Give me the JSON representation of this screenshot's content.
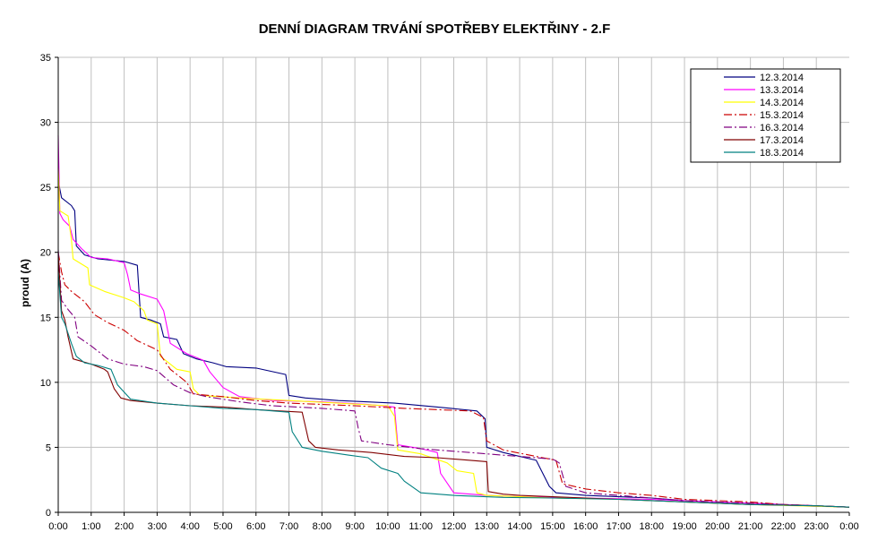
{
  "chart_data": {
    "type": "line",
    "title": "DENNÍ DIAGRAM TRVÁNÍ SPOTŘEBY ELEKTŘINY - 2.F",
    "ylabel": "proud (A)",
    "xlabel": "",
    "ylim": [
      0,
      35
    ],
    "yticks": [
      "0",
      "5",
      "10",
      "15",
      "20",
      "25",
      "30",
      "35"
    ],
    "xticks": [
      "0:00",
      "1:00",
      "2:00",
      "3:00",
      "4:00",
      "5:00",
      "6:00",
      "7:00",
      "8:00",
      "9:00",
      "10:00",
      "11:00",
      "12:00",
      "13:00",
      "14:00",
      "15:00",
      "16:00",
      "17:00",
      "18:00",
      "19:00",
      "20:00",
      "21:00",
      "22:00",
      "23:00",
      "0:00"
    ],
    "xlim_hours": [
      0,
      24
    ],
    "grid": "vertical and horizontal",
    "legend_position": "top-right",
    "series": [
      {
        "name": "12.3.2014",
        "color": "#000080",
        "dash": "solid",
        "points": [
          [
            0,
            25.5
          ],
          [
            0.1,
            24.2
          ],
          [
            0.4,
            23.6
          ],
          [
            0.5,
            23.2
          ],
          [
            0.55,
            20.5
          ],
          [
            0.8,
            19.8
          ],
          [
            1.2,
            19.5
          ],
          [
            2.0,
            19.3
          ],
          [
            2.4,
            19.0
          ],
          [
            2.5,
            15.0
          ],
          [
            2.8,
            14.8
          ],
          [
            3.1,
            14.5
          ],
          [
            3.2,
            13.5
          ],
          [
            3.6,
            13.3
          ],
          [
            3.8,
            12.2
          ],
          [
            4.2,
            11.8
          ],
          [
            4.7,
            11.5
          ],
          [
            5.1,
            11.2
          ],
          [
            6.0,
            11.1
          ],
          [
            6.9,
            10.6
          ],
          [
            7.0,
            9.0
          ],
          [
            7.5,
            8.8
          ],
          [
            8.5,
            8.6
          ],
          [
            10.2,
            8.4
          ],
          [
            11.5,
            8.1
          ],
          [
            12.7,
            7.8
          ],
          [
            12.95,
            7.2
          ],
          [
            13.0,
            5.0
          ],
          [
            13.5,
            4.6
          ],
          [
            14.5,
            4.0
          ],
          [
            14.9,
            2.0
          ],
          [
            15.1,
            1.5
          ],
          [
            16,
            1.3
          ],
          [
            17,
            1.2
          ],
          [
            18,
            1.1
          ],
          [
            19,
            0.9
          ],
          [
            20,
            0.8
          ],
          [
            21,
            0.7
          ],
          [
            22,
            0.6
          ],
          [
            23,
            0.5
          ],
          [
            24,
            0.4
          ]
        ]
      },
      {
        "name": "13.3.2014",
        "color": "#ff00ff",
        "dash": "solid",
        "points": [
          [
            0,
            29
          ],
          [
            0.05,
            23
          ],
          [
            0.15,
            22.5
          ],
          [
            0.35,
            22.0
          ],
          [
            0.45,
            21.0
          ],
          [
            0.7,
            20.3
          ],
          [
            1.0,
            19.6
          ],
          [
            1.5,
            19.5
          ],
          [
            2.0,
            19.2
          ],
          [
            2.1,
            18.3
          ],
          [
            2.2,
            17.1
          ],
          [
            2.5,
            16.8
          ],
          [
            3.0,
            16.4
          ],
          [
            3.2,
            15.5
          ],
          [
            3.4,
            13.0
          ],
          [
            3.9,
            12.2
          ],
          [
            4.4,
            11.7
          ],
          [
            4.6,
            10.8
          ],
          [
            5.0,
            9.6
          ],
          [
            5.5,
            8.9
          ],
          [
            6.5,
            8.6
          ],
          [
            8.0,
            8.5
          ],
          [
            9.4,
            8.3
          ],
          [
            10.2,
            8.1
          ],
          [
            10.3,
            5.2
          ],
          [
            11.0,
            4.9
          ],
          [
            11.5,
            4.6
          ],
          [
            11.6,
            3.0
          ],
          [
            12.0,
            1.5
          ],
          [
            13.0,
            1.3
          ],
          [
            14.0,
            1.2
          ],
          [
            16,
            1.1
          ],
          [
            18,
            1.0
          ],
          [
            20,
            0.8
          ],
          [
            22,
            0.6
          ],
          [
            24,
            0.4
          ]
        ]
      },
      {
        "name": "14.3.2014",
        "color": "#ffff00",
        "dash": "solid",
        "points": [
          [
            0,
            26.5
          ],
          [
            0.05,
            23.2
          ],
          [
            0.3,
            22.8
          ],
          [
            0.4,
            21.0
          ],
          [
            0.45,
            19.5
          ],
          [
            0.9,
            18.8
          ],
          [
            0.95,
            17.5
          ],
          [
            1.4,
            17.0
          ],
          [
            2.0,
            16.5
          ],
          [
            2.3,
            16.2
          ],
          [
            2.6,
            15.5
          ],
          [
            2.7,
            14.8
          ],
          [
            3.0,
            14.5
          ],
          [
            3.1,
            12.0
          ],
          [
            3.6,
            11.0
          ],
          [
            4.0,
            10.8
          ],
          [
            4.1,
            9.5
          ],
          [
            4.3,
            9.0
          ],
          [
            5.5,
            8.8
          ],
          [
            7.0,
            8.6
          ],
          [
            8.5,
            8.4
          ],
          [
            10.0,
            8.2
          ],
          [
            10.2,
            7.4
          ],
          [
            10.3,
            4.8
          ],
          [
            11.0,
            4.5
          ],
          [
            11.8,
            3.8
          ],
          [
            12.1,
            3.2
          ],
          [
            12.6,
            3.0
          ],
          [
            12.7,
            1.5
          ],
          [
            13.0,
            1.3
          ],
          [
            15,
            1.1
          ],
          [
            17,
            1.0
          ],
          [
            19,
            0.8
          ],
          [
            21,
            0.6
          ],
          [
            24,
            0.4
          ]
        ]
      },
      {
        "name": "15.3.2014",
        "color": "#cc0000",
        "dash": "dashdot",
        "points": [
          [
            0,
            20.0
          ],
          [
            0.1,
            18.5
          ],
          [
            0.2,
            17.5
          ],
          [
            0.4,
            17.0
          ],
          [
            0.6,
            16.6
          ],
          [
            0.8,
            16.2
          ],
          [
            1.1,
            15.2
          ],
          [
            1.5,
            14.6
          ],
          [
            2.0,
            14.0
          ],
          [
            2.4,
            13.2
          ],
          [
            3.0,
            12.5
          ],
          [
            3.4,
            11.0
          ],
          [
            3.9,
            10.0
          ],
          [
            4.1,
            9.1
          ],
          [
            5.0,
            8.9
          ],
          [
            6.0,
            8.6
          ],
          [
            7.0,
            8.4
          ],
          [
            8.0,
            8.3
          ],
          [
            9.0,
            8.2
          ],
          [
            10.5,
            8.0
          ],
          [
            12.5,
            7.8
          ],
          [
            12.9,
            7.3
          ],
          [
            13.0,
            5.5
          ],
          [
            13.5,
            4.8
          ],
          [
            14.5,
            4.3
          ],
          [
            15.1,
            4.0
          ],
          [
            15.3,
            2.2
          ],
          [
            16.0,
            1.8
          ],
          [
            17,
            1.5
          ],
          [
            18,
            1.3
          ],
          [
            19,
            1.0
          ],
          [
            20,
            0.9
          ],
          [
            21,
            0.8
          ],
          [
            22,
            0.6
          ],
          [
            23,
            0.5
          ],
          [
            24,
            0.4
          ]
        ]
      },
      {
        "name": "16.3.2014",
        "color": "#800080",
        "dash": "dashdot",
        "points": [
          [
            0,
            20.2
          ],
          [
            0.1,
            16.3
          ],
          [
            0.3,
            15.6
          ],
          [
            0.5,
            15.0
          ],
          [
            0.6,
            13.5
          ],
          [
            1.0,
            12.8
          ],
          [
            1.5,
            11.8
          ],
          [
            2.0,
            11.4
          ],
          [
            2.6,
            11.2
          ],
          [
            3.0,
            10.9
          ],
          [
            3.5,
            9.8
          ],
          [
            4.0,
            9.2
          ],
          [
            4.5,
            8.9
          ],
          [
            5.5,
            8.5
          ],
          [
            6.5,
            8.2
          ],
          [
            8.0,
            8.0
          ],
          [
            9.0,
            7.8
          ],
          [
            9.1,
            6.5
          ],
          [
            9.2,
            5.5
          ],
          [
            10.0,
            5.2
          ],
          [
            11.0,
            4.9
          ],
          [
            12.0,
            4.7
          ],
          [
            13.0,
            4.5
          ],
          [
            14.0,
            4.3
          ],
          [
            15.0,
            4.1
          ],
          [
            15.2,
            3.8
          ],
          [
            15.4,
            2.0
          ],
          [
            16,
            1.5
          ],
          [
            17,
            1.3
          ],
          [
            18,
            1.1
          ],
          [
            19,
            0.9
          ],
          [
            20,
            0.8
          ],
          [
            21,
            0.7
          ],
          [
            22,
            0.6
          ],
          [
            23,
            0.5
          ],
          [
            24,
            0.4
          ]
        ]
      },
      {
        "name": "17.3.2014",
        "color": "#800000",
        "dash": "solid",
        "points": [
          [
            0,
            19.8
          ],
          [
            0.1,
            15.5
          ],
          [
            0.2,
            14.8
          ],
          [
            0.3,
            13.5
          ],
          [
            0.45,
            11.8
          ],
          [
            1.0,
            11.4
          ],
          [
            1.4,
            11.0
          ],
          [
            1.5,
            10.8
          ],
          [
            1.7,
            9.5
          ],
          [
            1.9,
            8.8
          ],
          [
            2.2,
            8.6
          ],
          [
            3.0,
            8.4
          ],
          [
            4.0,
            8.2
          ],
          [
            5.0,
            8.1
          ],
          [
            6.0,
            7.9
          ],
          [
            7.4,
            7.7
          ],
          [
            7.6,
            5.5
          ],
          [
            7.8,
            5.0
          ],
          [
            8.5,
            4.8
          ],
          [
            9.5,
            4.6
          ],
          [
            10.5,
            4.3
          ],
          [
            11.5,
            4.2
          ],
          [
            12.5,
            4.0
          ],
          [
            13.0,
            3.9
          ],
          [
            13.05,
            1.6
          ],
          [
            13.5,
            1.4
          ],
          [
            14,
            1.3
          ],
          [
            15,
            1.2
          ],
          [
            16,
            1.1
          ],
          [
            17,
            1.0
          ],
          [
            18,
            0.9
          ],
          [
            19,
            0.8
          ],
          [
            20,
            0.7
          ],
          [
            21,
            0.6
          ],
          [
            22,
            0.55
          ],
          [
            23,
            0.5
          ],
          [
            24,
            0.4
          ]
        ]
      },
      {
        "name": "18.3.2014",
        "color": "#008080",
        "dash": "solid",
        "points": [
          [
            0,
            18.5
          ],
          [
            0.1,
            15.0
          ],
          [
            0.2,
            14.5
          ],
          [
            0.4,
            13.0
          ],
          [
            0.55,
            12.0
          ],
          [
            0.8,
            11.5
          ],
          [
            1.2,
            11.3
          ],
          [
            1.6,
            11.0
          ],
          [
            1.8,
            9.8
          ],
          [
            2.2,
            8.7
          ],
          [
            3.0,
            8.4
          ],
          [
            4.0,
            8.2
          ],
          [
            5.0,
            8.0
          ],
          [
            6.0,
            7.9
          ],
          [
            7.0,
            7.7
          ],
          [
            7.1,
            6.2
          ],
          [
            7.4,
            5.0
          ],
          [
            8.0,
            4.7
          ],
          [
            8.8,
            4.4
          ],
          [
            9.4,
            4.2
          ],
          [
            9.8,
            3.4
          ],
          [
            10.3,
            3.0
          ],
          [
            10.5,
            2.4
          ],
          [
            11.0,
            1.5
          ],
          [
            12.0,
            1.3
          ],
          [
            13.5,
            1.15
          ],
          [
            15,
            1.1
          ],
          [
            17,
            1.0
          ],
          [
            18,
            0.9
          ],
          [
            19,
            0.8
          ],
          [
            20,
            0.7
          ],
          [
            21,
            0.6
          ],
          [
            22,
            0.55
          ],
          [
            23,
            0.5
          ],
          [
            24,
            0.4
          ]
        ]
      }
    ]
  }
}
